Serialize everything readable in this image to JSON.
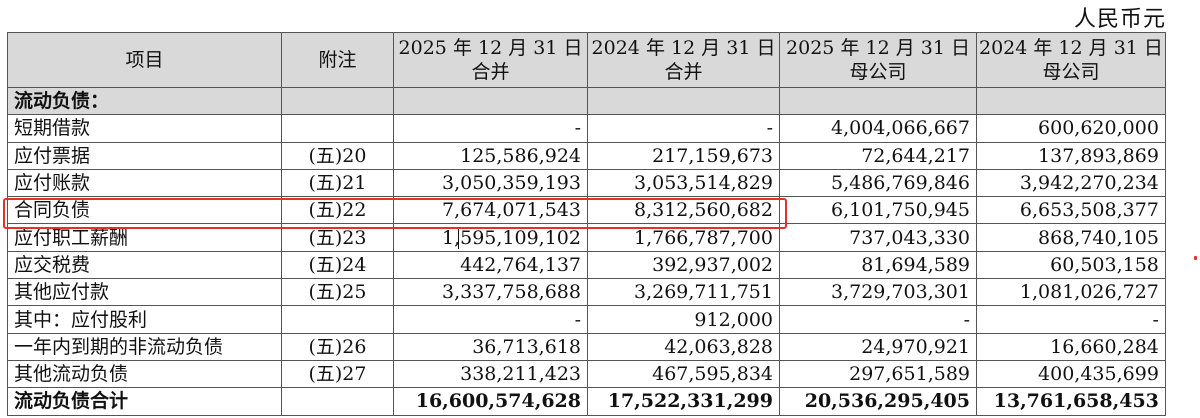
{
  "unit": "人民币元",
  "headers": {
    "item": "项目",
    "note": "附注",
    "col1_l1": "2025 年 12 月 31 日",
    "col1_l2": "合并",
    "col2_l1": "2024 年 12 月 31 日",
    "col2_l2": "合并",
    "col3_l1": "2025 年 12 月 31 日",
    "col3_l2": "母公司",
    "col4_l1": "2024 年 12 月 31 日",
    "col4_l2": "母公司"
  },
  "rows": [
    {
      "item": "流动负债：",
      "note": "",
      "v1": "",
      "v2": "",
      "v3": "",
      "v4": ""
    },
    {
      "item": "短期借款",
      "note": "",
      "v1": "-",
      "v2": "-",
      "v3": "4,004,066,667",
      "v4": "600,620,000"
    },
    {
      "item": "应付票据",
      "note": "(五)20",
      "v1": "125,586,924",
      "v2": "217,159,673",
      "v3": "72,644,217",
      "v4": "137,893,869"
    },
    {
      "item": "应付账款",
      "note": "(五)21",
      "v1": "3,050,359,193",
      "v2": "3,053,514,829",
      "v3": "5,486,769,846",
      "v4": "3,942,270,234"
    },
    {
      "item": "合同负债",
      "note": "(五)22",
      "v1": "7,674,071,543",
      "v2": "8,312,560,682",
      "v3": "6,101,750,945",
      "v4": "6,653,508,377"
    },
    {
      "item": "应付职工薪酬",
      "note": "(五)23",
      "v1": "1,595,109,102",
      "v2": "1,766,787,700",
      "v3": "737,043,330",
      "v4": "868,740,105"
    },
    {
      "item": "应交税费",
      "note": "(五)24",
      "v1": "442,764,137",
      "v2": "392,937,002",
      "v3": "81,694,589",
      "v4": "60,503,158"
    },
    {
      "item": "其他应付款",
      "note": "(五)25",
      "v1": "3,337,758,688",
      "v2": "3,269,711,751",
      "v3": "3,729,703,301",
      "v4": "1,081,026,727"
    },
    {
      "item": "其中：应付股利",
      "note": "",
      "v1": "-",
      "v2": "912,000",
      "v3": "-",
      "v4": "-"
    },
    {
      "item": "一年内到期的非流动负债",
      "note": "(五)26",
      "v1": "36,713,618",
      "v2": "42,063,828",
      "v3": "24,970,921",
      "v4": "16,660,284"
    },
    {
      "item": "其他流动负债",
      "note": "(五)27",
      "v1": "338,211,423",
      "v2": "467,595,834",
      "v3": "297,651,589",
      "v4": "400,435,699"
    },
    {
      "item": "流动负债合计",
      "note": "",
      "v1": "16,600,574,628",
      "v2": "17,522,331,299",
      "v3": "20,536,295,405",
      "v4": "13,761,658,453"
    }
  ],
  "colors": {
    "highlight": "#e3322a",
    "header_bg": "#d9d9d9"
  }
}
